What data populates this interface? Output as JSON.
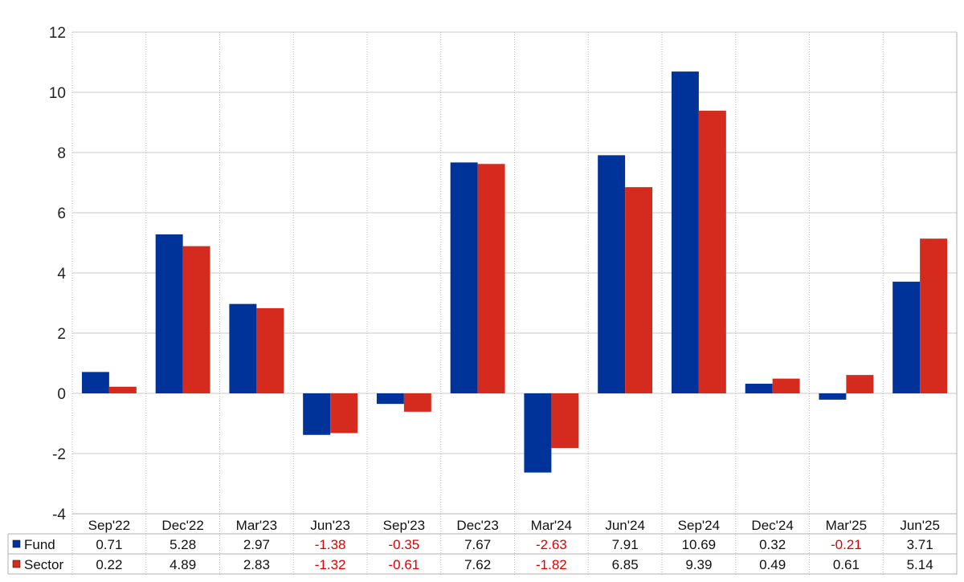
{
  "chart_data": {
    "type": "bar",
    "title": "",
    "xlabel": "",
    "ylabel": "",
    "ylim": [
      -4,
      12
    ],
    "yticks": [
      -4,
      -2,
      0,
      2,
      4,
      6,
      8,
      10,
      12
    ],
    "grid": true,
    "legend": "table-below",
    "categories": [
      "Sep'22",
      "Dec'22",
      "Mar'23",
      "Jun'23",
      "Sep'23",
      "Dec'23",
      "Mar'24",
      "Jun'24",
      "Sep'24",
      "Dec'24",
      "Mar'25",
      "Jun'25"
    ],
    "series": [
      {
        "name": "Fund",
        "color": "#003399",
        "values": [
          0.71,
          5.28,
          2.97,
          -1.38,
          -0.35,
          7.67,
          -2.63,
          7.91,
          10.69,
          0.32,
          -0.21,
          3.71
        ],
        "labels": [
          "0.71",
          "5.28",
          "2.97",
          "-1.38",
          "-0.35",
          "7.67",
          "-2.63",
          "7.91",
          "10.69",
          "0.32",
          "-0.21",
          "3.71"
        ]
      },
      {
        "name": "Sector",
        "color": "#d52b1e",
        "values": [
          0.22,
          4.89,
          2.83,
          -1.32,
          -0.61,
          7.62,
          -1.82,
          6.85,
          9.39,
          0.49,
          0.61,
          5.14
        ],
        "labels": [
          "0.22",
          "4.89",
          "2.83",
          "-1.32",
          "-0.61",
          "7.62",
          "-1.82",
          "6.85",
          "9.39",
          "0.49",
          "0.61",
          "5.14"
        ]
      }
    ],
    "negative_value_color": "#e00000"
  }
}
